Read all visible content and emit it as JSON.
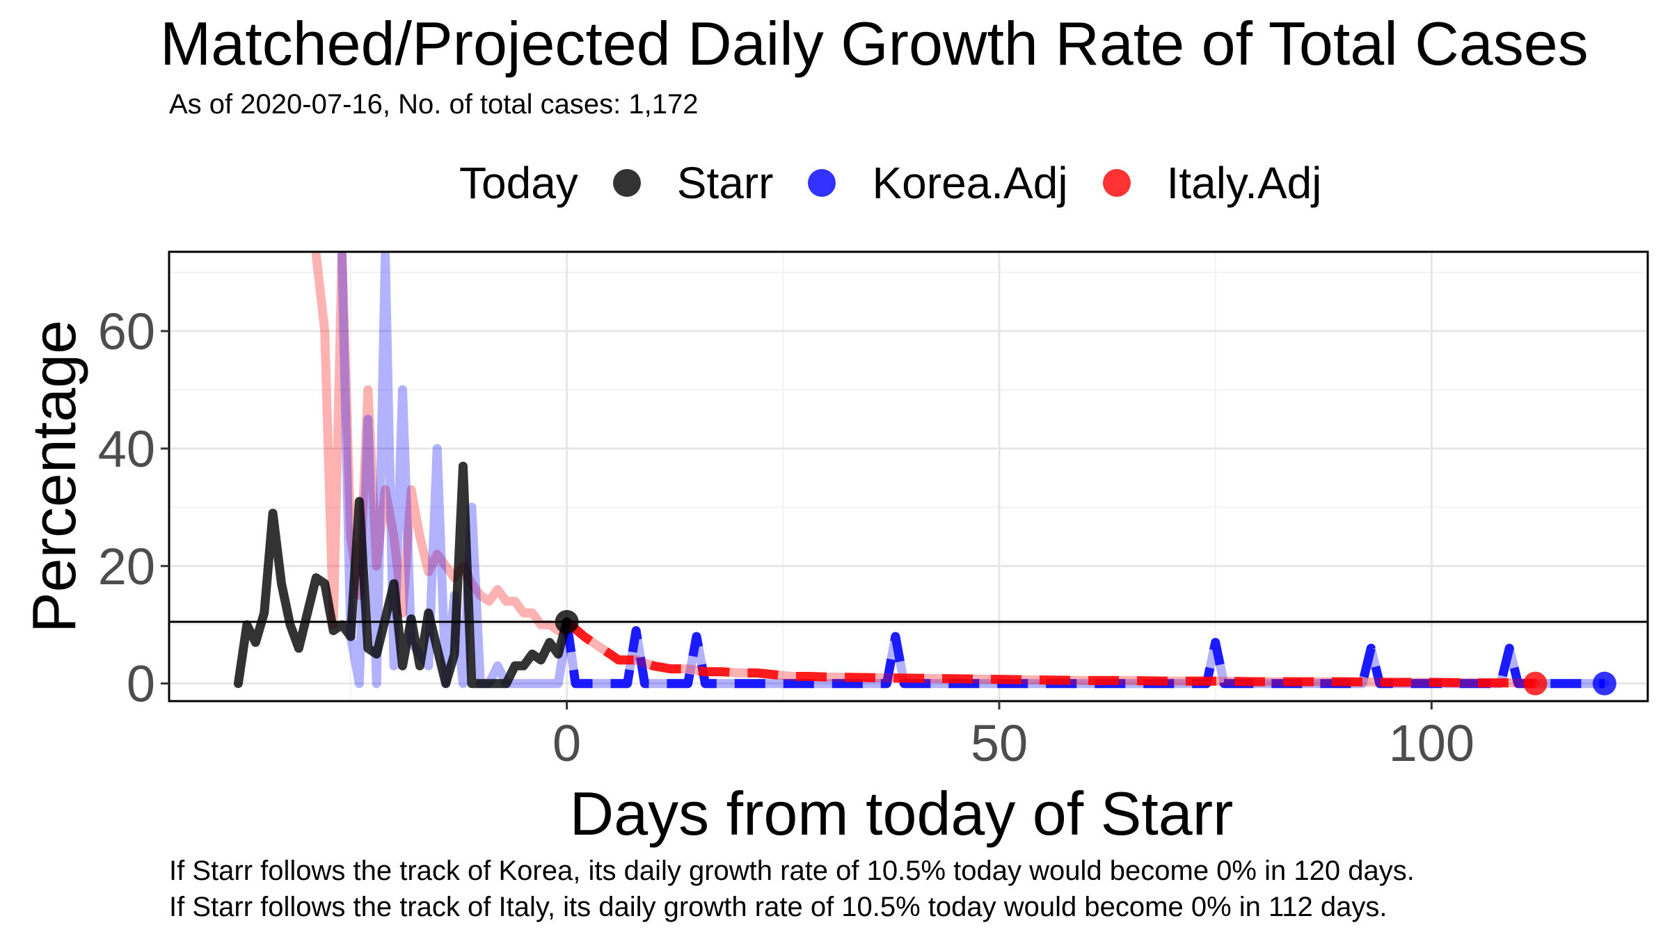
{
  "chart_data": {
    "type": "line",
    "title": "Matched/Projected Daily Growth Rate of Total Cases",
    "subtitle": "As of 2020-07-16, No. of total cases: 1,172",
    "xlabel": "Days from today of Starr",
    "ylabel": "Percentage",
    "xlim": [
      -46,
      125
    ],
    "ylim": [
      -3,
      73.5
    ],
    "x_ticks": [
      0,
      50,
      100
    ],
    "y_ticks": [
      0,
      20,
      40,
      60
    ],
    "grid": true,
    "legend": {
      "position": "top",
      "title": "Today",
      "entries": [
        {
          "label": "Starr",
          "color": "#000000"
        },
        {
          "label": "Korea.Adj",
          "color": "#0000ff"
        },
        {
          "label": "Italy.Adj",
          "color": "#ff0000"
        }
      ]
    },
    "hline": 10.5,
    "series": [
      {
        "name": "Starr",
        "color": "#000000",
        "x": [
          -38,
          -37,
          -36,
          -35,
          -34,
          -33,
          -32,
          -31,
          -30,
          -29,
          -28,
          -27,
          -26,
          -25,
          -24,
          -23,
          -22,
          -21,
          -20,
          -19,
          -18,
          -17,
          -16,
          -15,
          -14,
          -13,
          -12,
          -11,
          -10,
          -9,
          -8,
          -7,
          -6,
          -5,
          -4,
          -3,
          -2,
          -1,
          0
        ],
        "values": [
          0,
          10,
          7,
          12,
          29,
          17,
          10,
          6,
          12,
          18,
          17,
          9,
          10,
          8,
          31,
          6,
          5,
          11,
          17,
          3,
          11,
          3,
          12,
          6,
          0,
          5,
          37,
          0,
          0,
          0,
          0,
          0,
          3,
          3,
          5,
          4,
          7,
          5,
          10.5
        ]
      },
      {
        "name": "Italy (matched)",
        "color": "#ff0000",
        "x": [
          -29,
          -28,
          -27,
          -26,
          -25,
          -24,
          -23,
          -22,
          -21,
          -20,
          -19,
          -18,
          -17,
          -16,
          -15,
          -14,
          -13,
          -12,
          -11,
          -10,
          -9,
          -8,
          -7,
          -6,
          -5,
          -4,
          -3,
          -2,
          -1,
          0
        ],
        "values": [
          73,
          60,
          10,
          73,
          25,
          15,
          50,
          20,
          33,
          25,
          12,
          33,
          25,
          19,
          22,
          20,
          18,
          20,
          17,
          15,
          14,
          16,
          14,
          14,
          12,
          12,
          10,
          10,
          9,
          9
        ]
      },
      {
        "name": "Korea (matched)",
        "color": "#0000ff",
        "x": [
          -26,
          -25,
          -24,
          -23,
          -22,
          -21,
          -20,
          -19,
          -18,
          -17,
          -16,
          -15,
          -14,
          -13,
          -12,
          -11,
          -10,
          -9,
          -8,
          -7,
          -6,
          -5,
          -4,
          -3,
          -2,
          -1,
          0
        ],
        "values": [
          73,
          8,
          0,
          45,
          0,
          73,
          3,
          50,
          7,
          5,
          3,
          40,
          0,
          15,
          0,
          30,
          0,
          0,
          3,
          0,
          0,
          0,
          0,
          0,
          0,
          0,
          9
        ]
      },
      {
        "name": "Korea.Adj",
        "color": "#0000ff",
        "x": [
          0,
          1,
          2,
          3,
          4,
          5,
          6,
          7,
          8,
          9,
          10,
          11,
          12,
          13,
          14,
          15,
          16,
          17,
          18,
          19,
          20,
          21,
          22,
          23,
          24,
          25,
          26,
          27,
          28,
          29,
          30,
          31,
          32,
          33,
          34,
          35,
          36,
          37,
          38,
          39,
          40,
          45,
          50,
          55,
          60,
          65,
          70,
          72,
          73,
          74,
          75,
          76,
          77,
          80,
          85,
          90,
          91,
          92,
          93,
          94,
          95,
          100,
          105,
          108,
          109,
          110,
          111,
          112,
          115,
          120
        ],
        "values": [
          10.5,
          0,
          0,
          0,
          0,
          0,
          0,
          0,
          9,
          0,
          0,
          0,
          0,
          0,
          0,
          8,
          0,
          0,
          0,
          0,
          0,
          0,
          0,
          0,
          0,
          0,
          0,
          0,
          0,
          0,
          0,
          0,
          0,
          0,
          0,
          0,
          0,
          0,
          8,
          0,
          0,
          0,
          0,
          0,
          0,
          0,
          0,
          0,
          0,
          0,
          7,
          0,
          0,
          0,
          0,
          0,
          0,
          0,
          6,
          0,
          0,
          0,
          0,
          0,
          6,
          0,
          0,
          0,
          0,
          0
        ]
      },
      {
        "name": "Italy.Adj",
        "color": "#ff0000",
        "x": [
          0,
          2,
          3,
          4,
          5,
          6,
          8,
          10,
          12,
          14,
          16,
          18,
          20,
          22,
          24,
          26,
          28,
          30,
          35,
          40,
          45,
          50,
          55,
          60,
          65,
          70,
          75,
          80,
          85,
          90,
          95,
          100,
          105,
          110,
          112
        ],
        "values": [
          10.5,
          8,
          7,
          6,
          5,
          4,
          4,
          3,
          2.5,
          2.5,
          2,
          2,
          1.8,
          1.8,
          1.5,
          1.2,
          1.2,
          1.1,
          1,
          0.9,
          0.8,
          0.7,
          0.6,
          0.5,
          0.5,
          0.4,
          0.4,
          0.3,
          0.3,
          0.3,
          0.2,
          0.2,
          0.1,
          0.1,
          0
        ]
      }
    ]
  },
  "caption": {
    "line1": "If Starr follows the track of Korea, its daily growth rate of 10.5% today would become 0% in 120 days.",
    "line2": "If Starr follows the track of Italy, its daily growth rate of 10.5% today would become 0% in 112 days."
  }
}
